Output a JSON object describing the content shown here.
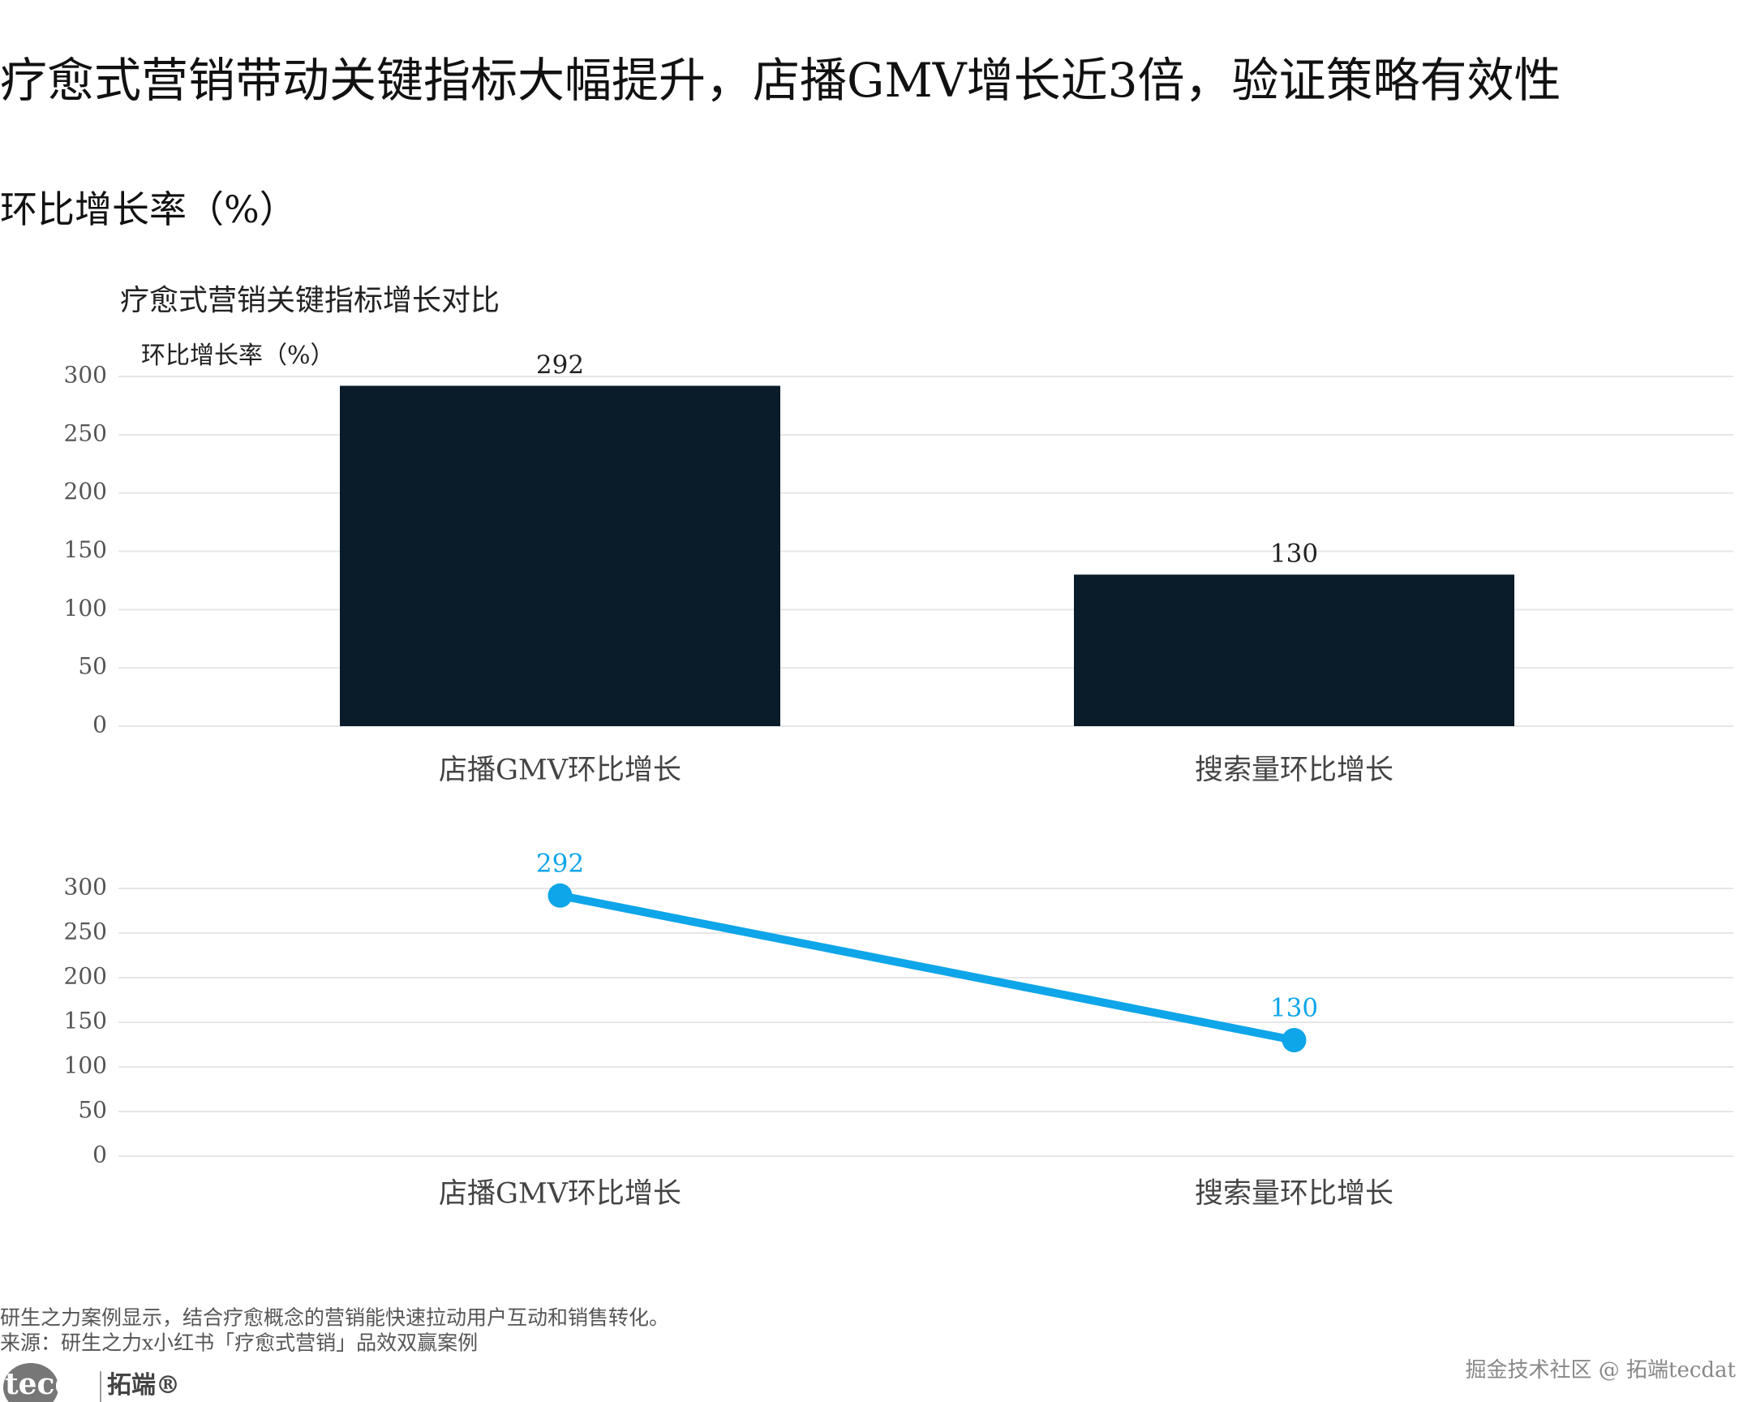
{
  "title": "疗愈式营销带动关键指标大幅提升，店播GMV增长近3倍，验证策略有效性",
  "subtitle": "环比增长率（%）",
  "note": "研生之力案例显示，结合疗愈概念的营销能快速拉动用户互动和销售转化。",
  "source": "来源：研生之力x小红书「疗愈式营销」品效双赢案例",
  "logo": "tecdat",
  "logo_cn": "拓端®",
  "watermark": "掘金技术社区 @ 拓端tecdat",
  "chart_data": [
    {
      "type": "bar",
      "title": "疗愈式营销关键指标增长对比",
      "y_label": "环比增长率（%）",
      "categories": [
        "店播GMV环比增长",
        "搜索量环比增长"
      ],
      "values": [
        292,
        130
      ],
      "color": "#0a1c2a",
      "ylim": [
        0,
        300
      ],
      "yticks": [
        0,
        50,
        100,
        150,
        200,
        250,
        300
      ],
      "grid": true
    },
    {
      "type": "line",
      "categories": [
        "店播GMV环比增长",
        "搜索量环比增长"
      ],
      "values": [
        292,
        130
      ],
      "color": "#0ea5e9",
      "ylim": [
        0,
        300
      ],
      "yticks": [
        0,
        50,
        100,
        150,
        200,
        250,
        300
      ],
      "grid": true
    }
  ]
}
